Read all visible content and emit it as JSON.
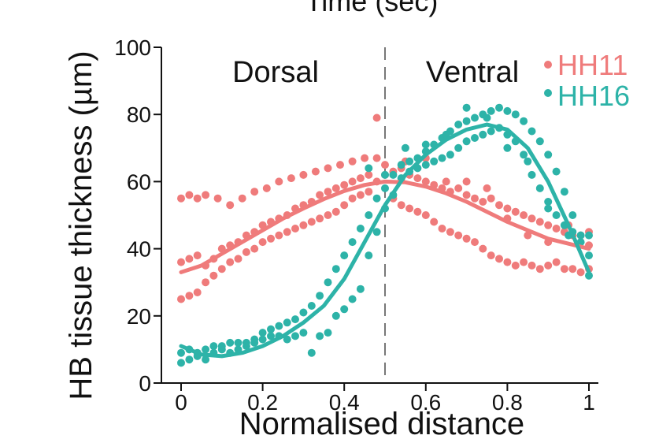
{
  "top_cut_label": "Time (sec)",
  "chart_data": {
    "type": "scatter",
    "xlabel": "Normalised distance",
    "ylabel": "HB tissue thickness (µm)",
    "xlim": [
      0,
      1
    ],
    "ylim": [
      0,
      100
    ],
    "x_ticks": [
      "0",
      "0.2",
      "0.4",
      "0.6",
      "0.8",
      "1"
    ],
    "y_ticks": [
      "0",
      "20",
      "40",
      "60",
      "80",
      "100"
    ],
    "grid": false,
    "legend_position": "top-right",
    "divider_x": 0.5,
    "annotations": [
      "Dorsal",
      "Ventral"
    ],
    "series": [
      {
        "name": "HH11",
        "color": "#ef7b7b",
        "fit": [
          [
            0,
            33
          ],
          [
            0.05,
            35
          ],
          [
            0.1,
            38.5
          ],
          [
            0.15,
            42
          ],
          [
            0.2,
            45.5
          ],
          [
            0.25,
            49
          ],
          [
            0.3,
            52
          ],
          [
            0.35,
            54.8
          ],
          [
            0.4,
            57.2
          ],
          [
            0.45,
            59
          ],
          [
            0.5,
            60
          ],
          [
            0.55,
            59.8
          ],
          [
            0.6,
            58.5
          ],
          [
            0.65,
            56.5
          ],
          [
            0.7,
            54
          ],
          [
            0.75,
            51
          ],
          [
            0.8,
            48
          ],
          [
            0.85,
            45.5
          ],
          [
            0.9,
            43
          ],
          [
            0.95,
            41.5
          ],
          [
            1,
            40
          ]
        ],
        "points": [
          [
            0,
            55
          ],
          [
            0.02,
            56
          ],
          [
            0.04,
            55
          ],
          [
            0.06,
            56
          ],
          [
            0.09,
            55
          ],
          [
            0.12,
            53
          ],
          [
            0.15,
            55
          ],
          [
            0.18,
            57
          ],
          [
            0.21,
            58
          ],
          [
            0.24,
            60
          ],
          [
            0.27,
            61
          ],
          [
            0.3,
            62
          ],
          [
            0.33,
            63
          ],
          [
            0.36,
            64
          ],
          [
            0.39,
            65
          ],
          [
            0.42,
            66
          ],
          [
            0.45,
            67
          ],
          [
            0.48,
            67
          ],
          [
            0.5,
            65
          ],
          [
            0.0,
            36
          ],
          [
            0.02,
            37
          ],
          [
            0.04,
            38
          ],
          [
            0.06,
            35
          ],
          [
            0.08,
            37
          ],
          [
            0.1,
            40
          ],
          [
            0.12,
            41
          ],
          [
            0.14,
            42
          ],
          [
            0.16,
            44
          ],
          [
            0.18,
            45
          ],
          [
            0.2,
            47
          ],
          [
            0.22,
            48
          ],
          [
            0.24,
            49
          ],
          [
            0.26,
            50
          ],
          [
            0.28,
            52
          ],
          [
            0.3,
            53
          ],
          [
            0.32,
            54
          ],
          [
            0.34,
            56
          ],
          [
            0.36,
            57
          ],
          [
            0.38,
            58
          ],
          [
            0.4,
            59
          ],
          [
            0.42,
            60
          ],
          [
            0.44,
            61
          ],
          [
            0.46,
            62
          ],
          [
            0.48,
            60
          ],
          [
            0.0,
            25
          ],
          [
            0.02,
            26
          ],
          [
            0.04,
            27
          ],
          [
            0.06,
            30
          ],
          [
            0.08,
            32
          ],
          [
            0.1,
            34
          ],
          [
            0.12,
            36
          ],
          [
            0.14,
            37
          ],
          [
            0.16,
            39
          ],
          [
            0.18,
            40
          ],
          [
            0.2,
            42
          ],
          [
            0.22,
            43
          ],
          [
            0.24,
            44
          ],
          [
            0.26,
            45
          ],
          [
            0.28,
            46
          ],
          [
            0.3,
            47
          ],
          [
            0.32,
            48
          ],
          [
            0.34,
            49
          ],
          [
            0.36,
            50
          ],
          [
            0.38,
            51
          ],
          [
            0.4,
            53
          ],
          [
            0.42,
            55
          ],
          [
            0.44,
            56
          ],
          [
            0.46,
            57
          ],
          [
            0.48,
            79
          ],
          [
            0.5,
            62
          ],
          [
            0.52,
            63
          ],
          [
            0.54,
            64
          ],
          [
            0.56,
            62
          ],
          [
            0.58,
            61
          ],
          [
            0.6,
            60
          ],
          [
            0.62,
            59
          ],
          [
            0.64,
            58
          ],
          [
            0.66,
            57
          ],
          [
            0.68,
            58
          ],
          [
            0.7,
            56
          ],
          [
            0.72,
            55
          ],
          [
            0.74,
            54
          ],
          [
            0.76,
            55
          ],
          [
            0.78,
            53
          ],
          [
            0.8,
            52
          ],
          [
            0.82,
            51
          ],
          [
            0.84,
            50
          ],
          [
            0.86,
            49
          ],
          [
            0.88,
            48
          ],
          [
            0.9,
            47
          ],
          [
            0.92,
            46
          ],
          [
            0.94,
            45
          ],
          [
            0.96,
            44
          ],
          [
            0.98,
            44
          ],
          [
            1,
            45
          ],
          [
            0.52,
            55
          ],
          [
            0.54,
            53
          ],
          [
            0.56,
            52
          ],
          [
            0.58,
            51
          ],
          [
            0.6,
            50
          ],
          [
            0.62,
            48
          ],
          [
            0.64,
            46
          ],
          [
            0.66,
            45
          ],
          [
            0.68,
            44
          ],
          [
            0.7,
            43
          ],
          [
            0.72,
            42
          ],
          [
            0.74,
            40
          ],
          [
            0.76,
            38
          ],
          [
            0.78,
            37
          ],
          [
            0.8,
            36
          ],
          [
            0.82,
            35
          ],
          [
            0.84,
            36
          ],
          [
            0.86,
            35
          ],
          [
            0.88,
            34
          ],
          [
            0.9,
            35
          ],
          [
            0.92,
            36
          ],
          [
            0.94,
            34
          ],
          [
            0.96,
            34
          ],
          [
            0.98,
            33
          ],
          [
            1,
            34
          ],
          [
            0.55,
            66
          ],
          [
            0.6,
            67
          ],
          [
            0.65,
            60
          ],
          [
            0.7,
            60
          ],
          [
            0.75,
            58
          ],
          [
            0.8,
            49
          ],
          [
            0.85,
            44
          ],
          [
            0.9,
            42
          ],
          [
            0.95,
            47
          ],
          [
            1,
            41
          ]
        ]
      },
      {
        "name": "HH16",
        "color": "#2db3a8",
        "fit": [
          [
            0,
            11
          ],
          [
            0.05,
            8.5
          ],
          [
            0.1,
            8
          ],
          [
            0.15,
            9
          ],
          [
            0.2,
            11
          ],
          [
            0.25,
            14
          ],
          [
            0.3,
            18
          ],
          [
            0.35,
            23
          ],
          [
            0.4,
            31
          ],
          [
            0.45,
            42
          ],
          [
            0.5,
            53
          ],
          [
            0.55,
            62
          ],
          [
            0.6,
            68
          ],
          [
            0.65,
            72.5
          ],
          [
            0.7,
            75.5
          ],
          [
            0.75,
            77
          ],
          [
            0.8,
            75.5
          ],
          [
            0.85,
            70
          ],
          [
            0.9,
            60
          ],
          [
            0.95,
            47
          ],
          [
            1,
            33
          ]
        ],
        "points": [
          [
            0,
            6
          ],
          [
            0.02,
            7
          ],
          [
            0.04,
            8
          ],
          [
            0.06,
            7
          ],
          [
            0.08,
            9
          ],
          [
            0.1,
            10
          ],
          [
            0.12,
            9
          ],
          [
            0.14,
            10
          ],
          [
            0.16,
            11
          ],
          [
            0.18,
            12
          ],
          [
            0.2,
            13
          ],
          [
            0.22,
            14
          ],
          [
            0.24,
            14
          ],
          [
            0.26,
            13
          ],
          [
            0.28,
            14
          ],
          [
            0.3,
            15
          ],
          [
            0.32,
            9
          ],
          [
            0.0,
            9
          ],
          [
            0.02,
            10
          ],
          [
            0.04,
            9
          ],
          [
            0.06,
            10
          ],
          [
            0.08,
            11
          ],
          [
            0.1,
            11
          ],
          [
            0.12,
            12
          ],
          [
            0.14,
            12
          ],
          [
            0.16,
            12
          ],
          [
            0.18,
            13
          ],
          [
            0.2,
            15
          ],
          [
            0.22,
            16
          ],
          [
            0.24,
            17
          ],
          [
            0.26,
            18
          ],
          [
            0.28,
            19
          ],
          [
            0.3,
            21
          ],
          [
            0.32,
            23
          ],
          [
            0.34,
            26
          ],
          [
            0.36,
            30
          ],
          [
            0.38,
            34
          ],
          [
            0.4,
            38
          ],
          [
            0.42,
            42
          ],
          [
            0.44,
            46
          ],
          [
            0.46,
            50
          ],
          [
            0.48,
            55
          ],
          [
            0.5,
            58
          ],
          [
            0.52,
            62
          ],
          [
            0.54,
            65
          ],
          [
            0.56,
            66
          ],
          [
            0.58,
            67
          ],
          [
            0.6,
            69
          ],
          [
            0.62,
            71
          ],
          [
            0.64,
            73
          ],
          [
            0.66,
            75
          ],
          [
            0.68,
            77
          ],
          [
            0.7,
            78
          ],
          [
            0.72,
            79
          ],
          [
            0.74,
            80
          ],
          [
            0.76,
            81
          ],
          [
            0.78,
            82
          ],
          [
            0.8,
            81
          ],
          [
            0.82,
            80
          ],
          [
            0.84,
            78
          ],
          [
            0.86,
            75
          ],
          [
            0.88,
            72
          ],
          [
            0.9,
            68
          ],
          [
            0.92,
            63
          ],
          [
            0.94,
            57
          ],
          [
            0.96,
            50
          ],
          [
            0.98,
            42
          ],
          [
            1,
            32
          ],
          [
            0.34,
            14
          ],
          [
            0.36,
            15
          ],
          [
            0.38,
            20
          ],
          [
            0.4,
            22
          ],
          [
            0.42,
            25
          ],
          [
            0.44,
            28
          ],
          [
            0.46,
            38
          ],
          [
            0.48,
            45
          ],
          [
            0.5,
            52
          ],
          [
            0.52,
            56
          ],
          [
            0.54,
            61
          ],
          [
            0.56,
            63
          ],
          [
            0.58,
            64
          ],
          [
            0.6,
            65
          ],
          [
            0.62,
            66
          ],
          [
            0.64,
            67
          ],
          [
            0.66,
            68
          ],
          [
            0.68,
            70
          ],
          [
            0.7,
            72
          ],
          [
            0.72,
            73
          ],
          [
            0.74,
            74
          ],
          [
            0.76,
            75
          ],
          [
            0.78,
            76
          ],
          [
            0.8,
            74
          ],
          [
            0.82,
            72
          ],
          [
            0.84,
            68
          ],
          [
            0.86,
            62
          ],
          [
            0.88,
            58
          ],
          [
            0.9,
            54
          ],
          [
            0.92,
            50
          ],
          [
            0.94,
            47
          ],
          [
            0.96,
            45
          ],
          [
            0.98,
            44
          ],
          [
            1,
            44
          ],
          [
            0.46,
            64
          ],
          [
            0.5,
            62
          ],
          [
            0.55,
            70
          ],
          [
            0.6,
            71
          ],
          [
            0.65,
            74
          ],
          [
            0.7,
            82
          ],
          [
            0.75,
            79
          ],
          [
            0.8,
            70
          ],
          [
            0.85,
            66
          ],
          [
            0.9,
            52
          ],
          [
            0.95,
            44
          ],
          [
            1,
            38
          ]
        ]
      }
    ]
  }
}
